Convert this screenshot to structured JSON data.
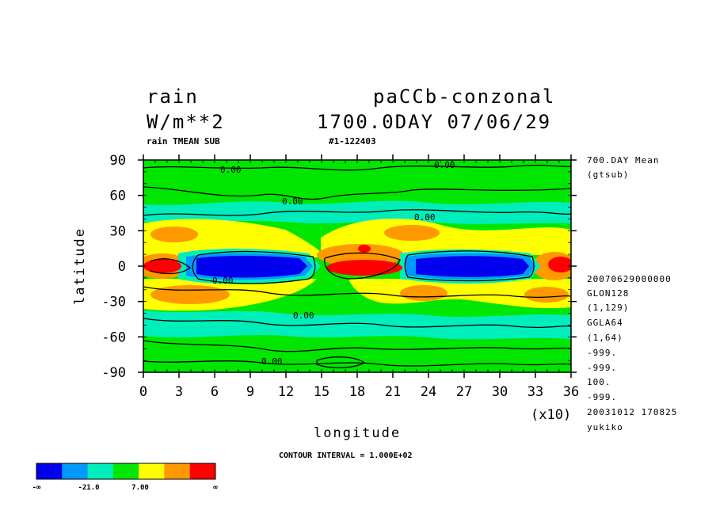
{
  "header": {
    "variable": "rain",
    "units": "W/m**2",
    "experiment": "paCCb-conzonal",
    "time_label": "1700.0DAY 07/06/29",
    "subtitle_left": "rain TMEAN SUB",
    "subtitle_right": "#1-122403"
  },
  "side_info": {
    "top": [
      "700.DAY Mean",
      "(gtsub)"
    ],
    "bottom": [
      "20070629000000",
      "GLON128",
      "(1,129)",
      "GGLA64",
      "(1,64)",
      "-999.",
      "-999.",
      "100.",
      "-999.",
      "20031012 170825",
      "yukiko"
    ]
  },
  "axes": {
    "xlabel": "longitude",
    "ylabel": "latitude",
    "x_multiplier": "(x10)",
    "xticks": [
      "0",
      "3",
      "6",
      "9",
      "12",
      "15",
      "18",
      "21",
      "24",
      "27",
      "30",
      "33",
      "36"
    ],
    "yticks": [
      "90",
      "60",
      "30",
      "0",
      "-30",
      "-60",
      "-90"
    ]
  },
  "footer": {
    "contour_interval": "CONTOUR INTERVAL = 1.000E+02"
  },
  "colorbar": {
    "colors": [
      "#0000ee",
      "#0099ff",
      "#00eebb",
      "#00e600",
      "#ffff00",
      "#ff9900",
      "#ff0000"
    ],
    "labels": [
      "-∞",
      "-21.0",
      "7.00",
      "∞"
    ]
  },
  "chart_data": {
    "type": "heatmap",
    "title": "rain",
    "xlabel": "longitude",
    "ylabel": "latitude",
    "xlim": [
      0,
      360
    ],
    "ylim": [
      -90,
      90
    ],
    "x_tick_values": [
      0,
      30,
      60,
      90,
      120,
      150,
      180,
      210,
      240,
      270,
      300,
      330,
      360
    ],
    "y_tick_values": [
      90,
      60,
      30,
      0,
      -30,
      -60,
      -90
    ],
    "contour_labels": [
      "0.00",
      "0.00",
      "0.00",
      "0.00",
      "0.00",
      "0.00",
      "0.00"
    ],
    "levels": [
      "-∞",
      "-21.0",
      "7.00",
      "∞"
    ]
  }
}
